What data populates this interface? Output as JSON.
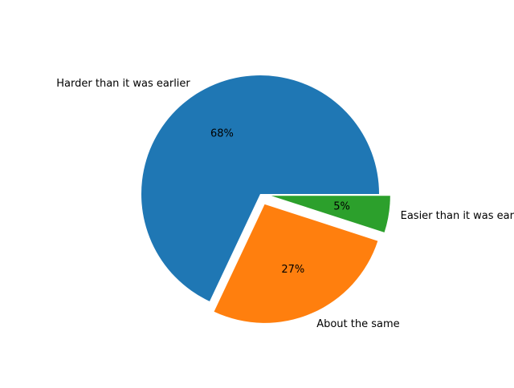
{
  "chart_data": {
    "type": "pie",
    "title": "",
    "slices": [
      {
        "label": "Harder than it was earlier",
        "value": 68,
        "pct_label": "68%",
        "color": "#1f77b4",
        "exploded": false
      },
      {
        "label": "About the same",
        "value": 27,
        "pct_label": "27%",
        "color": "#ff7f0e",
        "exploded": true
      },
      {
        "label": "Easier than it was earlier",
        "value": 5,
        "pct_label": "5%",
        "color": "#2ca02c",
        "exploded": true
      }
    ],
    "start_angle_deg": 0,
    "direction": "counterclockwise",
    "legend": "none"
  }
}
